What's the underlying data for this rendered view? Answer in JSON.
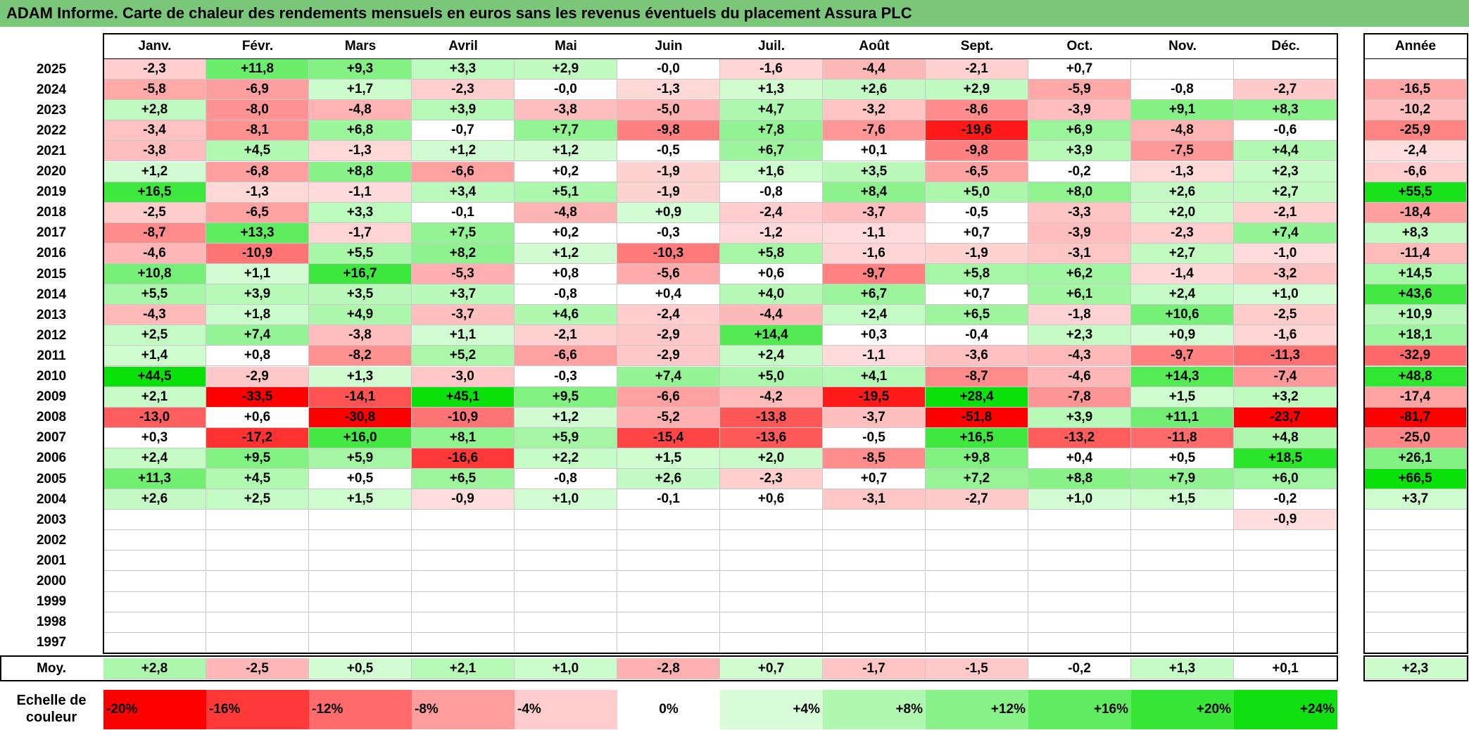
{
  "title": "ADAM Informe. Carte de chaleur des rendements mensuels en euros sans les revenus éventuels du placement Assura PLC",
  "chart_data": {
    "type": "heatmap",
    "months": [
      "Janv.",
      "Févr.",
      "Mars",
      "Avril",
      "Mai",
      "Juin",
      "Juil.",
      "Août",
      "Sept.",
      "Oct.",
      "Nov.",
      "Déc."
    ],
    "year_header": "Année",
    "avg_label": "Moy.",
    "rows": [
      {
        "year": "2025",
        "values": [
          "-2,3",
          "+11,8",
          "+9,3",
          "+3,3",
          "+2,9",
          "-0,0",
          "-1,6",
          "-4,4",
          "-2,1",
          "+0,7",
          "",
          ""
        ],
        "annual": ""
      },
      {
        "year": "2024",
        "values": [
          "-5,8",
          "-6,9",
          "+1,7",
          "-2,3",
          "-0,0",
          "-1,3",
          "+1,3",
          "+2,6",
          "+2,9",
          "-5,9",
          "-0,8",
          "-2,7"
        ],
        "annual": "-16,5"
      },
      {
        "year": "2023",
        "values": [
          "+2,8",
          "-8,0",
          "-4,8",
          "+3,9",
          "-3,8",
          "-5,0",
          "+4,7",
          "-3,2",
          "-8,6",
          "-3,9",
          "+9,1",
          "+8,3"
        ],
        "annual": "-10,2"
      },
      {
        "year": "2022",
        "values": [
          "-3,4",
          "-8,1",
          "+6,8",
          "-0,7",
          "+7,7",
          "-9,8",
          "+7,8",
          "-7,6",
          "-19,6",
          "+6,9",
          "-4,8",
          "-0,6"
        ],
        "annual": "-25,9"
      },
      {
        "year": "2021",
        "values": [
          "-3,8",
          "+4,5",
          "-1,3",
          "+1,2",
          "+1,2",
          "-0,5",
          "+6,7",
          "+0,1",
          "-9,8",
          "+3,9",
          "-7,5",
          "+4,4"
        ],
        "annual": "-2,4"
      },
      {
        "year": "2020",
        "values": [
          "+1,2",
          "-6,8",
          "+8,8",
          "-6,6",
          "+0,2",
          "-1,9",
          "+1,6",
          "+3,5",
          "-6,5",
          "-0,2",
          "-1,3",
          "+2,3"
        ],
        "annual": "-6,6"
      },
      {
        "year": "2019",
        "values": [
          "+16,5",
          "-1,3",
          "-1,1",
          "+3,4",
          "+5,1",
          "-1,9",
          "-0,8",
          "+8,4",
          "+5,0",
          "+8,0",
          "+2,6",
          "+2,7"
        ],
        "annual": "+55,5"
      },
      {
        "year": "2018",
        "values": [
          "-2,5",
          "-6,5",
          "+3,3",
          "-0,1",
          "-4,8",
          "+0,9",
          "-2,4",
          "-3,7",
          "-0,5",
          "-3,3",
          "+2,0",
          "-2,1"
        ],
        "annual": "-18,4"
      },
      {
        "year": "2017",
        "values": [
          "-8,7",
          "+13,3",
          "-1,7",
          "+7,5",
          "+0,2",
          "-0,3",
          "-1,2",
          "-1,1",
          "+0,7",
          "-3,9",
          "-2,3",
          "+7,4"
        ],
        "annual": "+8,3"
      },
      {
        "year": "2016",
        "values": [
          "-4,6",
          "-10,9",
          "+5,5",
          "+8,2",
          "+1,2",
          "-10,3",
          "+5,8",
          "-1,6",
          "-1,9",
          "-3,1",
          "+2,7",
          "-1,0"
        ],
        "annual": "-11,4"
      },
      {
        "year": "2015",
        "values": [
          "+10,8",
          "+1,1",
          "+16,7",
          "-5,3",
          "+0,8",
          "-5,6",
          "+0,6",
          "-9,7",
          "+5,8",
          "+6,2",
          "-1,4",
          "-3,2"
        ],
        "annual": "+14,5"
      },
      {
        "year": "2014",
        "values": [
          "+5,5",
          "+3,9",
          "+3,5",
          "+3,7",
          "-0,8",
          "+0,4",
          "+4,0",
          "+6,7",
          "+0,7",
          "+6,1",
          "+2,4",
          "+1,0"
        ],
        "annual": "+43,6"
      },
      {
        "year": "2013",
        "values": [
          "-4,3",
          "+1,8",
          "+4,9",
          "-3,7",
          "+4,6",
          "-2,4",
          "-4,4",
          "+2,4",
          "+6,5",
          "-1,8",
          "+10,6",
          "-2,5"
        ],
        "annual": "+10,9"
      },
      {
        "year": "2012",
        "values": [
          "+2,5",
          "+7,4",
          "-3,8",
          "+1,1",
          "-2,1",
          "-2,9",
          "+14,4",
          "+0,3",
          "-0,4",
          "+2,3",
          "+0,9",
          "-1,6"
        ],
        "annual": "+18,1"
      },
      {
        "year": "2011",
        "values": [
          "+1,4",
          "+0,8",
          "-8,2",
          "+5,2",
          "-6,6",
          "-2,9",
          "+2,4",
          "-1,1",
          "-3,6",
          "-4,3",
          "-9,7",
          "-11,3"
        ],
        "annual": "-32,9"
      },
      {
        "year": "2010",
        "values": [
          "+44,5",
          "-2,9",
          "+1,3",
          "-3,0",
          "-0,3",
          "+7,4",
          "+5,0",
          "+4,1",
          "-8,7",
          "-4,6",
          "+14,3",
          "-7,4"
        ],
        "annual": "+48,8"
      },
      {
        "year": "2009",
        "values": [
          "+2,1",
          "-33,5",
          "-14,1",
          "+45,1",
          "+9,5",
          "-6,6",
          "-4,2",
          "-19,5",
          "+28,4",
          "-7,8",
          "+1,5",
          "+3,2"
        ],
        "annual": "-17,4"
      },
      {
        "year": "2008",
        "values": [
          "-13,0",
          "+0,6",
          "-30,8",
          "-10,9",
          "+1,2",
          "-5,2",
          "-13,8",
          "-3,7",
          "-51,8",
          "+3,9",
          "+11,1",
          "-23,7"
        ],
        "annual": "-81,7"
      },
      {
        "year": "2007",
        "values": [
          "+0,3",
          "-17,2",
          "+16,0",
          "+8,1",
          "+5,9",
          "-15,4",
          "-13,6",
          "-0,5",
          "+16,5",
          "-13,2",
          "-11,8",
          "+4,8"
        ],
        "annual": "-25,0"
      },
      {
        "year": "2006",
        "values": [
          "+2,4",
          "+9,5",
          "+5,9",
          "-16,6",
          "+2,2",
          "+1,5",
          "+2,0",
          "-8,5",
          "+9,8",
          "+0,4",
          "+0,5",
          "+18,5"
        ],
        "annual": "+26,1"
      },
      {
        "year": "2005",
        "values": [
          "+11,3",
          "+4,5",
          "+0,5",
          "+6,5",
          "-0,8",
          "+2,6",
          "-2,3",
          "+0,7",
          "+7,2",
          "+8,8",
          "+7,9",
          "+6,0"
        ],
        "annual": "+66,5"
      },
      {
        "year": "2004",
        "values": [
          "+2,6",
          "+2,5",
          "+1,5",
          "-0,9",
          "+1,0",
          "-0,1",
          "+0,6",
          "-3,1",
          "-2,7",
          "+1,0",
          "+1,5",
          "-0,2"
        ],
        "annual": "+3,7"
      },
      {
        "year": "2003",
        "values": [
          "",
          "",
          "",
          "",
          "",
          "",
          "",
          "",
          "",
          "",
          "",
          "-0,9"
        ],
        "annual": ""
      },
      {
        "year": "2002",
        "values": [
          "",
          "",
          "",
          "",
          "",
          "",
          "",
          "",
          "",
          "",
          "",
          ""
        ],
        "annual": ""
      },
      {
        "year": "2001",
        "values": [
          "",
          "",
          "",
          "",
          "",
          "",
          "",
          "",
          "",
          "",
          "",
          ""
        ],
        "annual": ""
      },
      {
        "year": "2000",
        "values": [
          "",
          "",
          "",
          "",
          "",
          "",
          "",
          "",
          "",
          "",
          "",
          ""
        ],
        "annual": ""
      },
      {
        "year": "1999",
        "values": [
          "",
          "",
          "",
          "",
          "",
          "",
          "",
          "",
          "",
          "",
          "",
          ""
        ],
        "annual": ""
      },
      {
        "year": "1998",
        "values": [
          "",
          "",
          "",
          "",
          "",
          "",
          "",
          "",
          "",
          "",
          "",
          ""
        ],
        "annual": ""
      },
      {
        "year": "1997",
        "values": [
          "",
          "",
          "",
          "",
          "",
          "",
          "",
          "",
          "",
          "",
          "",
          ""
        ],
        "annual": ""
      }
    ],
    "averages": [
      "+2,8",
      "-2,5",
      "+0,5",
      "+2,1",
      "+1,0",
      "-2,8",
      "+0,7",
      "-1,7",
      "-1,5",
      "-0,2",
      "+1,3",
      "+0,1"
    ],
    "annual_average": "+2,3",
    "scale_label": "Echelle de couleur",
    "scale": [
      "-20%",
      "-16%",
      "-12%",
      "-8%",
      "-4%",
      "0%",
      "+4%",
      "+8%",
      "+12%",
      "+16%",
      "+20%",
      "+24%"
    ],
    "scale_colors": [
      "#ff0000",
      "#ff3838",
      "#ff6a6a",
      "#ff9c9c",
      "#ffcdcd",
      "#ffffff",
      "#d8fcd8",
      "#b0f7b0",
      "#88f288",
      "#60ec60",
      "#38e638",
      "#10e010"
    ]
  }
}
